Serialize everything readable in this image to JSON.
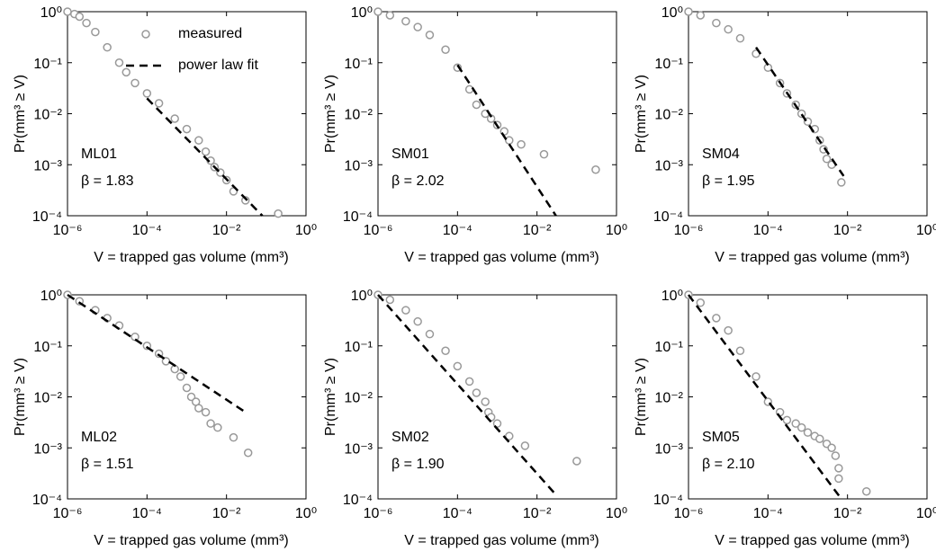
{
  "chart_data": [
    {
      "type": "scatter",
      "label": "ML01",
      "beta": "β = 1.83",
      "xlabel": "V = trapped gas volume (mm³)",
      "ylabel": "Pr(mm³ ≥ V)",
      "xscale": "log",
      "yscale": "log",
      "legend": "upper right",
      "xlim": [
        1e-06,
        1
      ],
      "ylim": [
        0.0001,
        1
      ],
      "xticks": [
        {
          "value": 1e-06,
          "label": "10⁻⁶"
        },
        {
          "value": 0.0001,
          "label": "10⁻⁴"
        },
        {
          "value": 0.01,
          "label": "10⁻²"
        },
        {
          "value": 1,
          "label": "10⁰"
        }
      ],
      "yticks": [
        {
          "value": 0.0001,
          "label": "10⁻⁴"
        },
        {
          "value": 0.001,
          "label": "10⁻³"
        },
        {
          "value": 0.01,
          "label": "10⁻²"
        },
        {
          "value": 0.1,
          "label": "10⁻¹"
        },
        {
          "value": 1,
          "label": "10⁰"
        }
      ],
      "series": [
        {
          "name": "measured",
          "type": "scatter",
          "color": "#999999",
          "x": [
            1e-06,
            1.5e-06,
            2e-06,
            3e-06,
            5e-06,
            1e-05,
            2e-05,
            3e-05,
            5e-05,
            0.0001,
            0.0002,
            0.0005,
            0.001,
            0.002,
            0.003,
            0.004,
            0.005,
            0.007,
            0.01,
            0.015,
            0.03,
            0.2
          ],
          "values": [
            1,
            0.9,
            0.8,
            0.6,
            0.4,
            0.2,
            0.1,
            0.065,
            0.04,
            0.025,
            0.016,
            0.008,
            0.005,
            0.003,
            0.0018,
            0.0012,
            0.0009,
            0.0007,
            0.0005,
            0.0003,
            0.0002,
            0.00011
          ]
        },
        {
          "name": "power law fit",
          "type": "line",
          "color": "#000000",
          "x": [
            0.0001,
            0.08
          ],
          "values": [
            0.02,
            0.0001
          ]
        }
      ]
    },
    {
      "type": "scatter",
      "label": "SM01",
      "beta": "β = 2.02",
      "xlabel": "V = trapped gas volume (mm³)",
      "ylabel": "Pr(mm³ ≥ V)",
      "xscale": "log",
      "yscale": "log",
      "xlim": [
        1e-06,
        1
      ],
      "ylim": [
        0.0001,
        1
      ],
      "xticks": [
        {
          "value": 1e-06,
          "label": "10⁻⁶"
        },
        {
          "value": 0.0001,
          "label": "10⁻⁴"
        },
        {
          "value": 0.01,
          "label": "10⁻²"
        },
        {
          "value": 1,
          "label": "10⁰"
        }
      ],
      "yticks": [
        {
          "value": 0.0001,
          "label": "10⁻⁴"
        },
        {
          "value": 0.001,
          "label": "10⁻³"
        },
        {
          "value": 0.01,
          "label": "10⁻²"
        },
        {
          "value": 0.1,
          "label": "10⁻¹"
        },
        {
          "value": 1,
          "label": "10⁰"
        }
      ],
      "series": [
        {
          "type": "scatter",
          "color": "#999999",
          "x": [
            1e-06,
            2e-06,
            5e-06,
            1e-05,
            2e-05,
            5e-05,
            0.0001,
            0.0002,
            0.0003,
            0.0005,
            0.0007,
            0.001,
            0.0015,
            0.002,
            0.004,
            0.015,
            0.3
          ],
          "values": [
            1,
            0.85,
            0.65,
            0.5,
            0.35,
            0.18,
            0.08,
            0.03,
            0.015,
            0.01,
            0.008,
            0.006,
            0.0045,
            0.003,
            0.0025,
            0.0016,
            0.0008
          ]
        },
        {
          "type": "line",
          "color": "#000000",
          "x": [
            0.0001,
            0.03
          ],
          "values": [
            0.09,
            0.0001
          ]
        }
      ]
    },
    {
      "type": "scatter",
      "label": "SM04",
      "beta": "β = 1.95",
      "xlabel": "V = trapped gas volume (mm³)",
      "ylabel": "Pr(mm³ ≥ V)",
      "xscale": "log",
      "yscale": "log",
      "xlim": [
        1e-06,
        1
      ],
      "ylim": [
        0.0001,
        1
      ],
      "xticks": [
        {
          "value": 1e-06,
          "label": "10⁻⁶"
        },
        {
          "value": 0.0001,
          "label": "10⁻⁴"
        },
        {
          "value": 0.01,
          "label": "10⁻²"
        },
        {
          "value": 1,
          "label": "10⁰"
        }
      ],
      "yticks": [
        {
          "value": 0.0001,
          "label": "10⁻⁴"
        },
        {
          "value": 0.001,
          "label": "10⁻³"
        },
        {
          "value": 0.01,
          "label": "10⁻²"
        },
        {
          "value": 0.1,
          "label": "10⁻¹"
        },
        {
          "value": 1,
          "label": "10⁰"
        }
      ],
      "series": [
        {
          "type": "scatter",
          "color": "#999999",
          "x": [
            1e-06,
            2e-06,
            5e-06,
            1e-05,
            2e-05,
            5e-05,
            0.0001,
            0.0002,
            0.0003,
            0.0005,
            0.0007,
            0.001,
            0.0015,
            0.002,
            0.0025,
            0.003,
            0.004,
            0.007
          ],
          "values": [
            1,
            0.85,
            0.6,
            0.45,
            0.3,
            0.15,
            0.08,
            0.04,
            0.025,
            0.015,
            0.01,
            0.007,
            0.005,
            0.003,
            0.002,
            0.0013,
            0.001,
            0.00045
          ]
        },
        {
          "type": "line",
          "color": "#000000",
          "x": [
            5e-05,
            0.008
          ],
          "values": [
            0.2,
            0.0006
          ]
        }
      ]
    },
    {
      "type": "scatter",
      "label": "ML02",
      "beta": "β = 1.51",
      "xlabel": "V = trapped gas volume (mm³)",
      "ylabel": "Pr(mm³ ≥ V)",
      "xscale": "log",
      "yscale": "log",
      "xlim": [
        1e-06,
        1
      ],
      "ylim": [
        0.0001,
        1
      ],
      "xticks": [
        {
          "value": 1e-06,
          "label": "10⁻⁶"
        },
        {
          "value": 0.0001,
          "label": "10⁻⁴"
        },
        {
          "value": 0.01,
          "label": "10⁻²"
        },
        {
          "value": 1,
          "label": "10⁰"
        }
      ],
      "yticks": [
        {
          "value": 0.0001,
          "label": "10⁻⁴"
        },
        {
          "value": 0.001,
          "label": "10⁻³"
        },
        {
          "value": 0.01,
          "label": "10⁻²"
        },
        {
          "value": 0.1,
          "label": "10⁻¹"
        },
        {
          "value": 1,
          "label": "10⁰"
        }
      ],
      "series": [
        {
          "type": "scatter",
          "color": "#999999",
          "x": [
            1e-06,
            2e-06,
            5e-06,
            1e-05,
            2e-05,
            5e-05,
            0.0001,
            0.0002,
            0.0003,
            0.0005,
            0.0007,
            0.001,
            0.0013,
            0.0017,
            0.002,
            0.003,
            0.004,
            0.006,
            0.015,
            0.035
          ],
          "values": [
            1,
            0.75,
            0.5,
            0.35,
            0.25,
            0.15,
            0.1,
            0.07,
            0.05,
            0.035,
            0.025,
            0.015,
            0.01,
            0.008,
            0.006,
            0.005,
            0.003,
            0.0025,
            0.0016,
            0.0008
          ]
        },
        {
          "type": "line",
          "color": "#000000",
          "x": [
            1e-06,
            0.03
          ],
          "values": [
            1,
            0.005
          ]
        }
      ]
    },
    {
      "type": "scatter",
      "label": "SM02",
      "beta": "β = 1.90",
      "xlabel": "V = trapped gas volume (mm³)",
      "ylabel": "Pr(mm³ ≥ V)",
      "xscale": "log",
      "yscale": "log",
      "xlim": [
        1e-06,
        1
      ],
      "ylim": [
        0.0001,
        1
      ],
      "xticks": [
        {
          "value": 1e-06,
          "label": "10⁻⁶"
        },
        {
          "value": 0.0001,
          "label": "10⁻⁴"
        },
        {
          "value": 0.01,
          "label": "10⁻²"
        },
        {
          "value": 1,
          "label": "10⁰"
        }
      ],
      "yticks": [
        {
          "value": 0.0001,
          "label": "10⁻⁴"
        },
        {
          "value": 0.001,
          "label": "10⁻³"
        },
        {
          "value": 0.01,
          "label": "10⁻²"
        },
        {
          "value": 0.1,
          "label": "10⁻¹"
        },
        {
          "value": 1,
          "label": "10⁰"
        }
      ],
      "series": [
        {
          "type": "scatter",
          "color": "#999999",
          "x": [
            1e-06,
            2e-06,
            5e-06,
            1e-05,
            2e-05,
            5e-05,
            0.0001,
            0.0002,
            0.0003,
            0.0005,
            0.0006,
            0.0007,
            0.001,
            0.002,
            0.005,
            0.1
          ],
          "values": [
            1,
            0.8,
            0.5,
            0.3,
            0.17,
            0.08,
            0.04,
            0.02,
            0.012,
            0.008,
            0.005,
            0.004,
            0.003,
            0.0017,
            0.0011,
            0.00055
          ]
        },
        {
          "type": "line",
          "color": "#000000",
          "x": [
            1e-06,
            0.03
          ],
          "values": [
            1,
            0.00012
          ]
        }
      ]
    },
    {
      "type": "scatter",
      "label": "SM05",
      "beta": "β = 2.10",
      "xlabel": "V = trapped gas volume (mm³)",
      "ylabel": "Pr(mm³ ≥ V)",
      "xscale": "log",
      "yscale": "log",
      "xlim": [
        1e-06,
        1
      ],
      "ylim": [
        0.0001,
        1
      ],
      "xticks": [
        {
          "value": 1e-06,
          "label": "10⁻⁶"
        },
        {
          "value": 0.0001,
          "label": "10⁻⁴"
        },
        {
          "value": 0.01,
          "label": "10⁻²"
        },
        {
          "value": 1,
          "label": "10⁰"
        }
      ],
      "yticks": [
        {
          "value": 0.0001,
          "label": "10⁻⁴"
        },
        {
          "value": 0.001,
          "label": "10⁻³"
        },
        {
          "value": 0.01,
          "label": "10⁻²"
        },
        {
          "value": 0.1,
          "label": "10⁻¹"
        },
        {
          "value": 1,
          "label": "10⁰"
        }
      ],
      "series": [
        {
          "type": "scatter",
          "color": "#999999",
          "x": [
            1e-06,
            2e-06,
            5e-06,
            1e-05,
            2e-05,
            5e-05,
            0.0001,
            0.0002,
            0.0003,
            0.0005,
            0.0007,
            0.001,
            0.0015,
            0.002,
            0.003,
            0.004,
            0.005,
            0.006,
            0.006,
            0.03
          ],
          "values": [
            1,
            0.7,
            0.35,
            0.2,
            0.08,
            0.025,
            0.008,
            0.005,
            0.0035,
            0.003,
            0.0025,
            0.002,
            0.0017,
            0.0015,
            0.0012,
            0.001,
            0.0007,
            0.0004,
            0.00025,
            0.00014
          ]
        },
        {
          "type": "line",
          "color": "#000000",
          "x": [
            1e-06,
            0.007
          ],
          "values": [
            1,
            0.0001
          ]
        }
      ]
    }
  ]
}
